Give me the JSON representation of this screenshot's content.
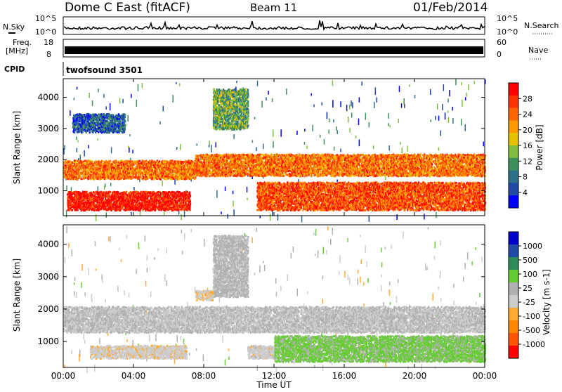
{
  "header": {
    "station": "Dome C East (fitACF)",
    "beam": "Beam 11",
    "date": "01/Feb/2014"
  },
  "strips": {
    "nsky": {
      "label": "N.Sky",
      "top_tick": "10^5",
      "bottom_tick": "10^0"
    },
    "nsearch": {
      "label": "N.Search",
      "top_tick": "10^5",
      "bottom_tick": "10^0"
    },
    "freq": {
      "label_top": "Freq.",
      "label_bottom": "[MHz]",
      "top_tick": "18",
      "bottom_tick": "8"
    },
    "nave": {
      "label": "Nave",
      "top_tick": "60",
      "bottom_tick": "0"
    },
    "cpid": {
      "label": "CPID",
      "value": "twofsound 3501"
    }
  },
  "x_axis": {
    "label": "Time UT",
    "ticks": [
      "00:00",
      "04:00",
      "08:00",
      "12:00",
      "16:00",
      "20:00",
      "00:00"
    ]
  },
  "colors": {
    "power_scale": [
      "#0000ff",
      "#1f4aa6",
      "#2e6f8a",
      "#3f8f5a",
      "#7fbf3f",
      "#e6c200",
      "#ff9900",
      "#ff6600",
      "#ff3300",
      "#ff0000"
    ],
    "velocity_scale": [
      "#ff0000",
      "#ff5500",
      "#ff8800",
      "#ffaa33",
      "#cccccc",
      "#b0b0b0",
      "#66cc33",
      "#2e8b57",
      "#1f4aa6",
      "#0000cc"
    ]
  },
  "chart_data": [
    {
      "type": "heatmap",
      "title": "Power",
      "xlabel": "Time UT",
      "ylabel": "Slant Range [km]",
      "xlim": [
        0,
        24
      ],
      "ylim": [
        200,
        4600
      ],
      "yticks": [
        "1000",
        "2000",
        "3000",
        "4000"
      ],
      "colorbar": {
        "label": "Power [dB]",
        "ticks": [
          "4",
          "8",
          "12",
          "16",
          "20",
          "24",
          "28"
        ],
        "range": [
          0,
          30
        ]
      },
      "regions": [
        {
          "t": [
            0.2,
            7.2
          ],
          "r": [
            400,
            1000
          ],
          "value": 28
        },
        {
          "t": [
            0,
            7.5
          ],
          "r": [
            1400,
            2000
          ],
          "value": 22
        },
        {
          "t": [
            7.5,
            24
          ],
          "r": [
            1500,
            2200
          ],
          "value": 22
        },
        {
          "t": [
            11,
            24
          ],
          "r": [
            400,
            1300
          ],
          "value": 24
        },
        {
          "t": [
            8.5,
            10.5
          ],
          "r": [
            3000,
            4300
          ],
          "value": 12
        },
        {
          "t": [
            0.5,
            3.5
          ],
          "r": [
            2900,
            3500
          ],
          "value": 6
        }
      ]
    },
    {
      "type": "heatmap",
      "title": "Velocity",
      "xlabel": "Time UT",
      "ylabel": "Slant Range [km]",
      "xlim": [
        0,
        24
      ],
      "ylim": [
        200,
        4600
      ],
      "yticks": [
        "1000",
        "2000",
        "3000",
        "4000"
      ],
      "colorbar": {
        "label": "Velocity [m s-1]",
        "ticks": [
          "1000",
          "500",
          "100",
          "25",
          "-25",
          "-100",
          "-500",
          "-1000"
        ],
        "range": [
          -1200,
          1200
        ]
      },
      "regions": [
        {
          "t": [
            1.5,
            7.0
          ],
          "r": [
            500,
            900
          ],
          "value": -150
        },
        {
          "t": [
            0,
            24
          ],
          "r": [
            1300,
            2100
          ],
          "value": 0
        },
        {
          "t": [
            10.5,
            12.0
          ],
          "r": [
            500,
            900
          ],
          "value": -120
        },
        {
          "t": [
            12.0,
            24
          ],
          "r": [
            400,
            1200
          ],
          "value": 300
        },
        {
          "t": [
            8.5,
            10.5
          ],
          "r": [
            2400,
            4300
          ],
          "value": 60
        },
        {
          "t": [
            7.5,
            8.5
          ],
          "r": [
            2300,
            2600
          ],
          "value": -200
        }
      ]
    }
  ]
}
